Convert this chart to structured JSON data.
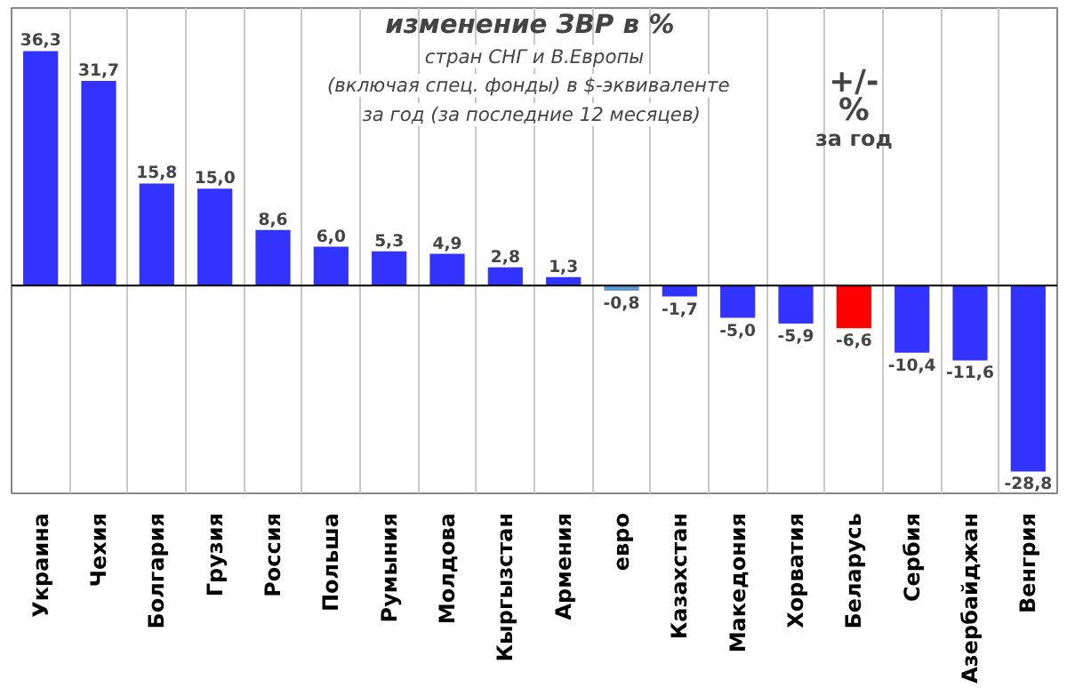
{
  "chart_data": {
    "type": "bar",
    "title": "изменение  ЗВР в %",
    "subtitle": "стран СНГ и В.Европы\n(включая  спец.  фонды) в $-эквиваленте\nза год (за последние  12 месяцев)",
    "categories": [
      "Украина",
      "Чехия",
      "Болгария",
      "Грузия",
      "Россия",
      "Польша",
      "Румыния",
      "Молдова",
      "Кыргызстан",
      "Армения",
      "евро",
      "Казахстан",
      "Македония",
      "Хорватия",
      "Беларусь",
      "Сербия",
      "Азербайджан",
      "Венгрия"
    ],
    "values": [
      36.3,
      31.7,
      15.8,
      15.0,
      8.6,
      6.0,
      5.3,
      4.9,
      2.8,
      1.3,
      -0.8,
      -1.7,
      -5.0,
      -5.9,
      -6.6,
      -10.4,
      -11.6,
      -28.8
    ],
    "value_labels": [
      "36,3",
      "31,7",
      "15,8",
      "15,0",
      "8,6",
      "6,0",
      "5,3",
      "4,9",
      "2,8",
      "1,3",
      "-0,8",
      "-1,7",
      "-5,0",
      "-5,9",
      "-6,6",
      "-10,4",
      "-11,6",
      "-28,8"
    ],
    "colors": [
      "#3333ff",
      "#3333ff",
      "#3333ff",
      "#3333ff",
      "#3333ff",
      "#3333ff",
      "#3333ff",
      "#3333ff",
      "#3333ff",
      "#3333ff",
      "#5b9bd5",
      "#3333ff",
      "#3333ff",
      "#3333ff",
      "#ff0000",
      "#3333ff",
      "#3333ff",
      "#3333ff"
    ],
    "annotations": [
      "+/-\n%\nза год"
    ],
    "grid": "x"
  }
}
